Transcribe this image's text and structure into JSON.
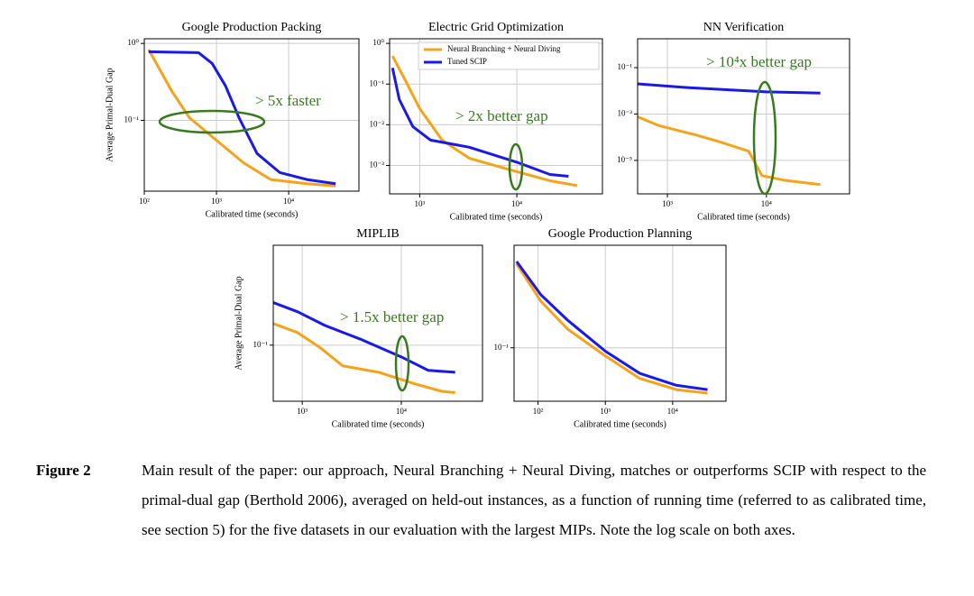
{
  "chart_data": [
    {
      "type": "line",
      "title": "Google Production Packing",
      "xlabel": "Calibrated time (seconds)",
      "ylabel": "Average Primal-Dual Gap",
      "xscale": "log",
      "yscale": "log",
      "grid": true,
      "annotation": "> 5x faster",
      "xlim": [
        100,
        94000
      ],
      "ylim": [
        0.012,
        1.15
      ],
      "xticks": [
        {
          "value": 100,
          "label": "10²"
        },
        {
          "value": 1000,
          "label": "10³"
        },
        {
          "value": 10000,
          "label": "10⁴"
        }
      ],
      "yticks": [
        {
          "value": 1,
          "label": "10⁰"
        },
        {
          "value": 0.1,
          "label": "10⁻¹"
        }
      ],
      "series": [
        {
          "color": "#f5a31a",
          "x": [
            115,
            237,
            422,
            1000,
            2371,
            5623,
            17800,
            44700
          ],
          "values": [
            0.83,
            0.245,
            0.108,
            0.055,
            0.028,
            0.017,
            0.015,
            0.014
          ]
        },
        {
          "color": "#1a1ae6",
          "x": [
            115,
            562,
            870,
            1334,
            2053,
            3650,
            7500,
            17800,
            44700
          ],
          "values": [
            0.78,
            0.76,
            0.55,
            0.28,
            0.108,
            0.037,
            0.021,
            0.017,
            0.015
          ]
        }
      ]
    },
    {
      "type": "line",
      "title": "Electric Grid Optimization",
      "xlabel": "Calibrated time (seconds)",
      "xscale": "log",
      "yscale": "log",
      "grid": true,
      "legend": "upper right",
      "annotation": "> 2x better gap",
      "xlim": [
        490,
        76000
      ],
      "ylim": [
        0.0002,
        1.3
      ],
      "xticks": [
        {
          "value": 1000,
          "label": "10³"
        },
        {
          "value": 10000,
          "label": "10⁴"
        }
      ],
      "yticks": [
        {
          "value": 1,
          "label": "10⁰"
        },
        {
          "value": 0.1,
          "label": "10⁻¹"
        },
        {
          "value": 0.01,
          "label": "10⁻²"
        },
        {
          "value": 0.001,
          "label": "10⁻³"
        }
      ],
      "series": [
        {
          "name": "Neural Branching + Neural Diving",
          "color": "#f5a31a",
          "x": [
            525,
            720,
            1000,
            1700,
            3240,
            10000,
            21900,
            41700
          ],
          "values": [
            0.49,
            0.117,
            0.025,
            0.0042,
            0.0015,
            0.0007,
            0.00042,
            0.00032
          ]
        },
        {
          "name": "Tuned SCIP",
          "color": "#1a1ae6",
          "x": [
            525,
            616,
            850,
            1290,
            3240,
            10000,
            21900,
            34000
          ],
          "values": [
            0.25,
            0.042,
            0.009,
            0.0042,
            0.0028,
            0.0012,
            0.0006,
            0.00054
          ]
        }
      ]
    },
    {
      "type": "line",
      "title": "NN Verification",
      "xlabel": "Calibrated time (seconds)",
      "xscale": "log",
      "yscale": "log",
      "grid": true,
      "annotation": "> 10⁴x better gap",
      "xlim": [
        500,
        69000
      ],
      "ylim": [
        3.6e-07,
        1.76
      ],
      "xticks": [
        {
          "value": 1000,
          "label": "10³"
        },
        {
          "value": 10000,
          "label": "10⁴"
        }
      ],
      "yticks": [
        {
          "value": 0.1,
          "label": "10⁻¹"
        },
        {
          "value": 0.001,
          "label": "10⁻³"
        },
        {
          "value": 1e-05,
          "label": "10⁻⁵"
        }
      ],
      "series": [
        {
          "color": "#f5a31a",
          "x": [
            500,
            810,
            1870,
            3500,
            6600,
            9000,
            15000,
            35000
          ],
          "values": [
            0.00076,
            0.00032,
            0.00013,
            6e-05,
            2.5e-05,
            2.2e-06,
            1.4e-06,
            9e-07
          ]
        },
        {
          "color": "#1a1ae6",
          "x": [
            500,
            1520,
            10000,
            35000
          ],
          "values": [
            0.02,
            0.014,
            0.009,
            0.008
          ]
        }
      ]
    },
    {
      "type": "line",
      "title": "MIPLIB",
      "xlabel": "Calibrated time (seconds)",
      "ylabel": "Average Primal-Dual Gap",
      "xscale": "log",
      "yscale": "log",
      "grid": true,
      "annotation": "> 1.5x better gap",
      "xlim": [
        510,
        66000
      ],
      "ylim": [
        0.041,
        0.49
      ],
      "xticks": [
        {
          "value": 1000,
          "label": "10³"
        },
        {
          "value": 10000,
          "label": "10⁴"
        }
      ],
      "yticks": [
        {
          "value": 0.1,
          "label": "10⁻¹"
        }
      ],
      "series": [
        {
          "color": "#f5a31a",
          "x": [
            510,
            900,
            1520,
            2560,
            5900,
            13800,
            25700,
            35000
          ],
          "values": [
            0.141,
            0.122,
            0.096,
            0.072,
            0.065,
            0.054,
            0.048,
            0.047
          ]
        },
        {
          "color": "#1a1ae6",
          "x": [
            510,
            900,
            1690,
            3870,
            10000,
            18700,
            35000
          ],
          "values": [
            0.197,
            0.17,
            0.137,
            0.11,
            0.083,
            0.067,
            0.065
          ]
        }
      ]
    },
    {
      "type": "line",
      "title": "Google Production Planning",
      "xlabel": "Calibrated time (seconds)",
      "xscale": "log",
      "yscale": "log",
      "grid": true,
      "xlim": [
        44,
        62000
      ],
      "ylim": [
        0.032,
        0.89
      ],
      "xticks": [
        {
          "value": 100,
          "label": "10²"
        },
        {
          "value": 1000,
          "label": "10³"
        },
        {
          "value": 10000,
          "label": "10⁴"
        }
      ],
      "yticks": [
        {
          "value": 0.1,
          "label": "10⁻¹"
        }
      ],
      "series": [
        {
          "color": "#f5a31a",
          "x": [
            48,
            110,
            275,
            1000,
            3240,
            11300,
            33000
          ],
          "values": [
            0.6,
            0.27,
            0.149,
            0.084,
            0.052,
            0.041,
            0.038
          ]
        },
        {
          "color": "#1a1ae6",
          "x": [
            48,
            110,
            275,
            1000,
            3240,
            11300,
            33000
          ],
          "values": [
            0.63,
            0.31,
            0.18,
            0.093,
            0.058,
            0.045,
            0.041
          ]
        }
      ]
    }
  ],
  "caption": {
    "label": "Figure 2",
    "text": "Main result of the paper: our approach, Neural Branching + Neural Diving, matches or outperforms SCIP with respect to the primal-dual gap (Berthold 2006), averaged on held-out instances, as a function of running time (referred to as calibrated time, see section 5) for the five datasets in our evaluation with the largest MIPs. Note the log scale on both axes."
  }
}
